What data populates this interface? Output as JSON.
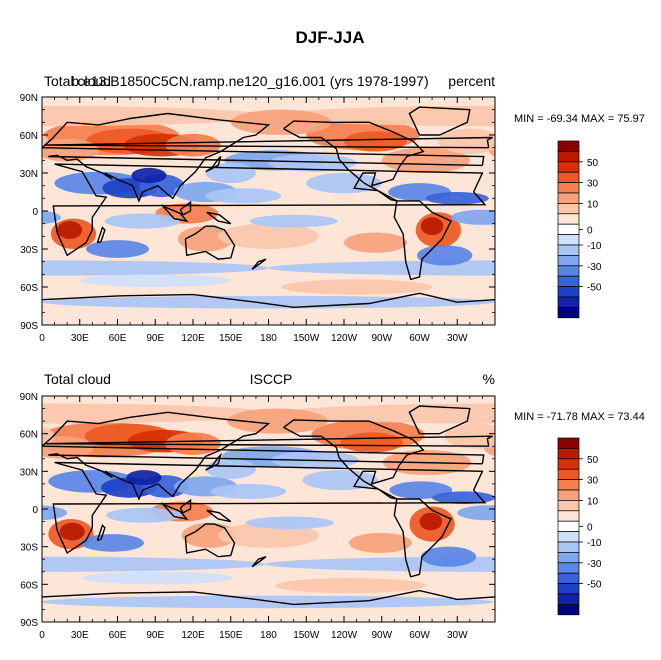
{
  "figure": {
    "title": "DJF-JJA"
  },
  "panels": [
    {
      "left_label": "Total cloud",
      "center_label": "b.e13.B1850C5CN.ramp.ne120_g16.001 (yrs 1978-1997)",
      "right_label": "percent",
      "stats": "MIN = -69.34 MAX =  75.97",
      "pattern_seed": 1
    },
    {
      "left_label": "Total cloud",
      "center_label": "ISCCP",
      "right_label": "%",
      "stats": "MIN = -71.78 MAX =  73.44",
      "pattern_seed": 2
    }
  ],
  "map": {
    "lat_labels": [
      "90N",
      "60N",
      "30N",
      "0",
      "30S",
      "60S",
      "90S"
    ],
    "lon_labels": [
      "0",
      "30E",
      "60E",
      "90E",
      "120E",
      "150E",
      "180",
      "150W",
      "120W",
      "90W",
      "60W",
      "30W"
    ]
  },
  "colorbar": {
    "labels": [
      "50",
      "30",
      "10",
      "0",
      "-10",
      "-30",
      "-50"
    ],
    "colors": [
      "#8b0000",
      "#b81a00",
      "#d83000",
      "#ee5a24",
      "#f57f4f",
      "#f7a27c",
      "#fac7ab",
      "#fde6d7",
      "#ffffff",
      "#cfe0fb",
      "#a9c6f5",
      "#7fa7ee",
      "#5a86e7",
      "#3a62dc",
      "#1e40c8",
      "#0f22a8",
      "#000080"
    ]
  }
}
